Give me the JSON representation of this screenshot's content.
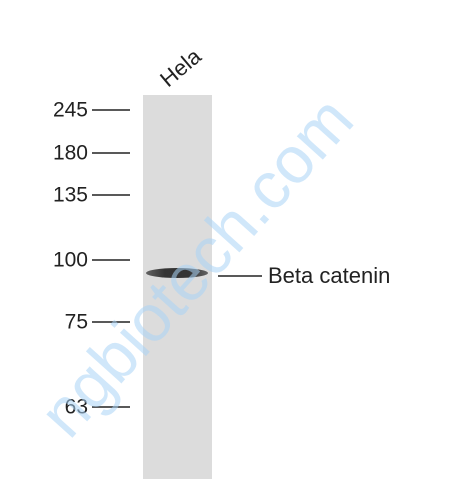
{
  "lane_label": "Hela",
  "markers": [
    245,
    180,
    135,
    100,
    75,
    63
  ],
  "band_label": "Beta catenin",
  "watermark": "ngbiotech.com"
}
